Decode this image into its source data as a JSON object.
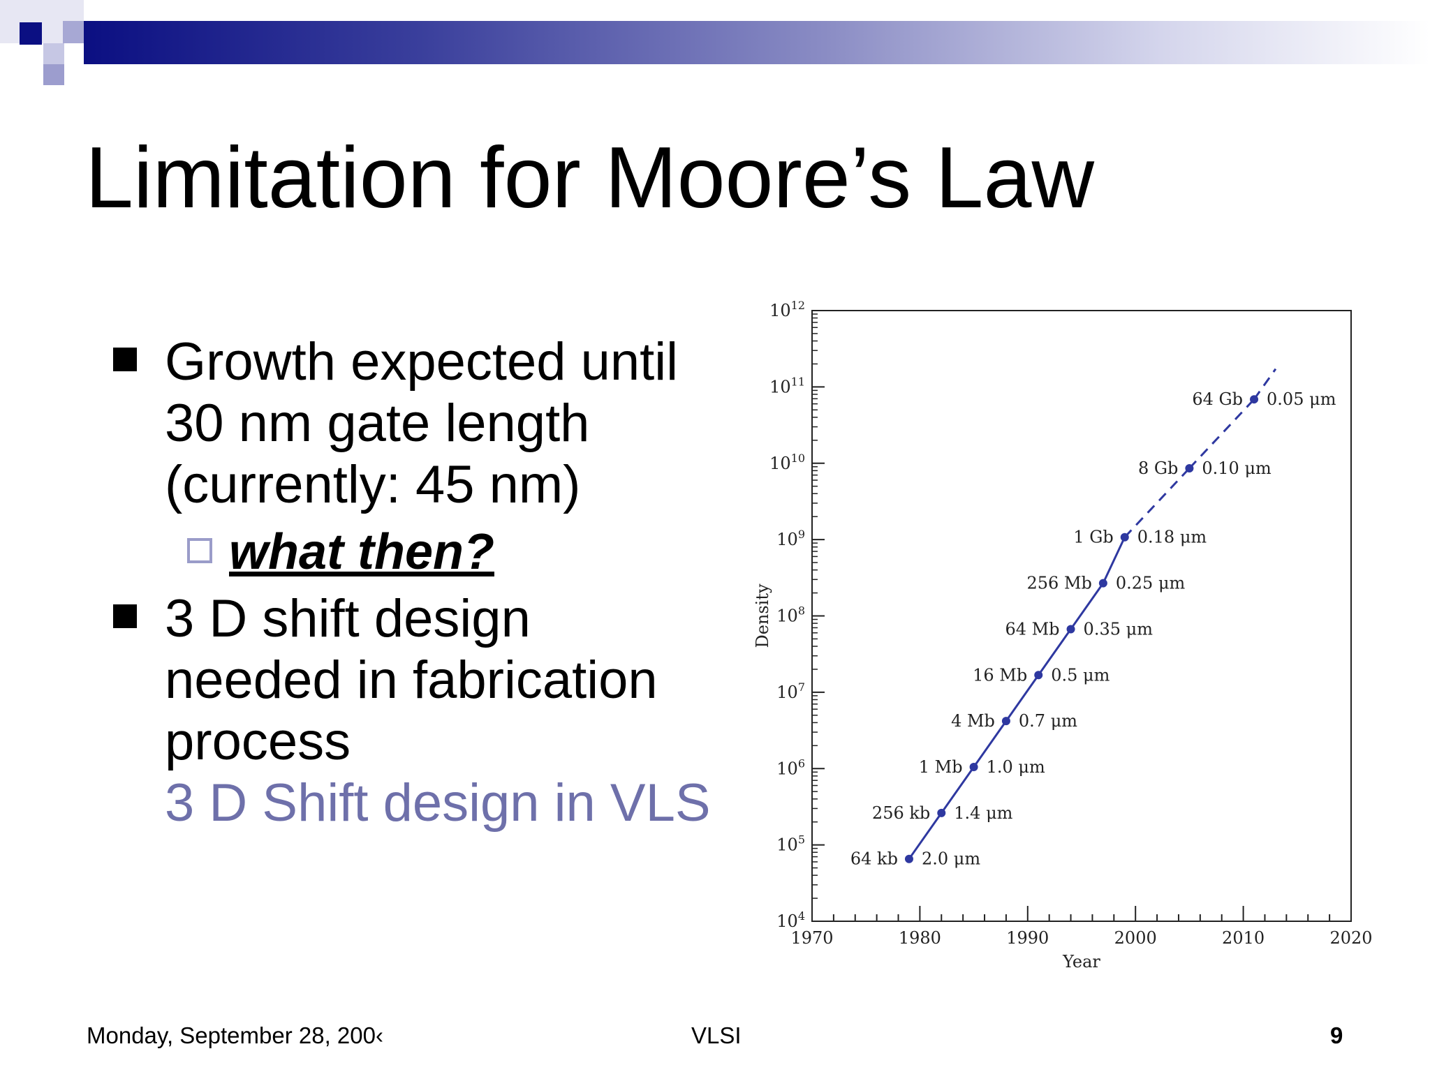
{
  "slide": {
    "title": "Limitation for Moore’s Law",
    "bullets": [
      {
        "lines": [
          "Growth expected until",
          "30 nm gate length",
          "(currently: 45 nm)"
        ]
      },
      {
        "lines": [
          "3 D shift design",
          "needed in fabrication",
          "process"
        ],
        "link": "3 D Shift design in VLS"
      }
    ],
    "sub_bullet": "what then?"
  },
  "footer": {
    "date": "Monday, September 28, 200‹",
    "center": "VLSI",
    "page": "9"
  },
  "colors": {
    "title_bar_dark": "#0b0f82",
    "accent": "#6e70aa",
    "series": "#2e38a0"
  },
  "chart_data": {
    "type": "line",
    "xlabel": "Year",
    "ylabel": "Density",
    "xlim": [
      1970,
      2020
    ],
    "ylim": [
      10000,
      1000000000000
    ],
    "yscale": "log",
    "x_ticks": [
      "1970",
      "1980",
      "1990",
      "2000",
      "2010",
      "2020"
    ],
    "y_ticks": [
      {
        "base": "10",
        "exp": "4"
      },
      {
        "base": "10",
        "exp": "5"
      },
      {
        "base": "10",
        "exp": "6"
      },
      {
        "base": "10",
        "exp": "7"
      },
      {
        "base": "10",
        "exp": "8"
      },
      {
        "base": "10",
        "exp": "9"
      },
      {
        "base": "10",
        "exp": "10"
      },
      {
        "base": "10",
        "exp": "11"
      },
      {
        "base": "10",
        "exp": "12"
      }
    ],
    "points": [
      {
        "year": 1979,
        "density": 65536,
        "capacity": "64 kb",
        "feature": "2.0 μm",
        "projected": false
      },
      {
        "year": 1982,
        "density": 262144,
        "capacity": "256 kb",
        "feature": "1.4 μm",
        "projected": false
      },
      {
        "year": 1985,
        "density": 1048576,
        "capacity": "1 Mb",
        "feature": "1.0 μm",
        "projected": false
      },
      {
        "year": 1988,
        "density": 4194304,
        "capacity": "4 Mb",
        "feature": "0.7 μm",
        "projected": false
      },
      {
        "year": 1991,
        "density": 16777216,
        "capacity": "16 Mb",
        "feature": "0.5 μm",
        "projected": false
      },
      {
        "year": 1994,
        "density": 67108864,
        "capacity": "64 Mb",
        "feature": "0.35 μm",
        "projected": false
      },
      {
        "year": 1997,
        "density": 268435456,
        "capacity": "256 Mb",
        "feature": "0.25 μm",
        "projected": false
      },
      {
        "year": 1999,
        "density": 1073741824,
        "capacity": "1 Gb",
        "feature": "0.18 μm",
        "projected": false
      },
      {
        "year": 2005,
        "density": 8589934592,
        "capacity": "8 Gb",
        "feature": "0.10 μm",
        "projected": true
      },
      {
        "year": 2011,
        "density": 68719476736,
        "capacity": "64 Gb",
        "feature": "0.05 μm",
        "projected": true
      }
    ],
    "grid": false,
    "legend": "none"
  }
}
